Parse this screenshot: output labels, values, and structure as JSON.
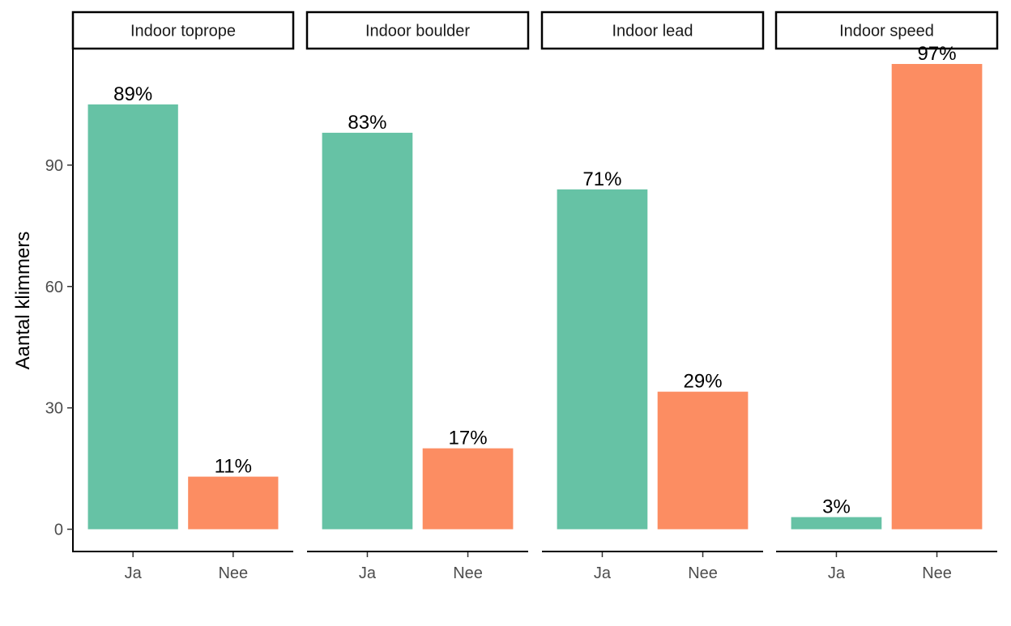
{
  "chart_data": {
    "type": "bar",
    "ylabel": "Aantal klimmers",
    "xlabel": "",
    "ylim": [
      -5.5,
      118.8
    ],
    "yticks": [
      0,
      30,
      60,
      90
    ],
    "categories": [
      "Ja",
      "Nee"
    ],
    "colors": {
      "Ja": "#66c2a5",
      "Nee": "#fc8d62"
    },
    "grid": false,
    "legend": "none",
    "facets": [
      {
        "title": "Indoor toprope",
        "values": [
          105,
          13
        ],
        "labels": [
          "89%",
          "11%"
        ]
      },
      {
        "title": "Indoor boulder",
        "values": [
          98,
          20
        ],
        "labels": [
          "83%",
          "17%"
        ]
      },
      {
        "title": "Indoor lead",
        "values": [
          84,
          34
        ],
        "labels": [
          "71%",
          "29%"
        ]
      },
      {
        "title": "Indoor speed",
        "values": [
          3,
          115
        ],
        "labels": [
          "3%",
          "97%"
        ]
      }
    ]
  }
}
